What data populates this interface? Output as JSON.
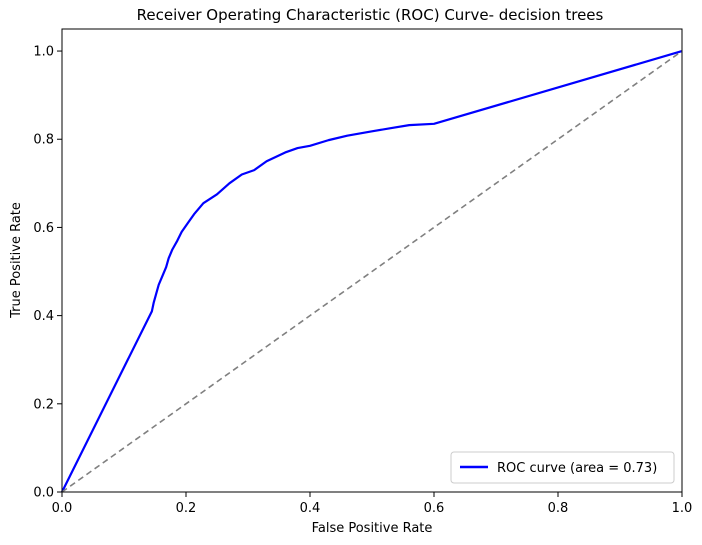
{
  "chart_data": {
    "type": "line",
    "title": "Receiver Operating Characteristic (ROC) Curve- decision trees",
    "xlabel": "False Positive Rate",
    "ylabel": "True Positive Rate",
    "xlim": [
      0.0,
      1.0
    ],
    "ylim": [
      0.0,
      1.05
    ],
    "xticks": [
      "0.0",
      "0.2",
      "0.4",
      "0.6",
      "0.8",
      "1.0"
    ],
    "yticks": [
      "0.0",
      "0.2",
      "0.4",
      "0.6",
      "0.8",
      "1.0"
    ],
    "grid": false,
    "legend_position": "lower-right",
    "series": [
      {
        "name": "ROC curve (area = 0.73)",
        "color": "#0000ff",
        "style": "solid",
        "points": [
          [
            0.0,
            0.0
          ],
          [
            0.145,
            0.41
          ],
          [
            0.148,
            0.43
          ],
          [
            0.152,
            0.45
          ],
          [
            0.156,
            0.47
          ],
          [
            0.162,
            0.49
          ],
          [
            0.168,
            0.51
          ],
          [
            0.172,
            0.53
          ],
          [
            0.178,
            0.55
          ],
          [
            0.186,
            0.57
          ],
          [
            0.193,
            0.59
          ],
          [
            0.203,
            0.61
          ],
          [
            0.213,
            0.63
          ],
          [
            0.228,
            0.655
          ],
          [
            0.25,
            0.675
          ],
          [
            0.27,
            0.7
          ],
          [
            0.29,
            0.72
          ],
          [
            0.31,
            0.73
          ],
          [
            0.33,
            0.75
          ],
          [
            0.36,
            0.77
          ],
          [
            0.38,
            0.78
          ],
          [
            0.4,
            0.785
          ],
          [
            0.43,
            0.798
          ],
          [
            0.46,
            0.808
          ],
          [
            0.5,
            0.818
          ],
          [
            0.53,
            0.825
          ],
          [
            0.56,
            0.832
          ],
          [
            0.6,
            0.835
          ],
          [
            1.0,
            1.0
          ]
        ]
      },
      {
        "name": "",
        "color": "#808080",
        "style": "dashed",
        "points": [
          [
            0.0,
            0.0
          ],
          [
            1.0,
            1.0
          ]
        ]
      }
    ]
  }
}
